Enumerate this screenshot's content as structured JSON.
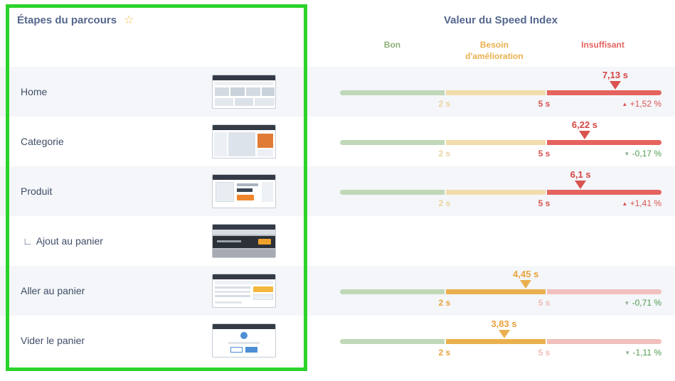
{
  "annotation": {
    "color": "#2bd32b"
  },
  "table": {
    "left_header": "Étapes du parcours",
    "star_icon": "☆",
    "right_header": "Valeur du Speed Index",
    "zones": [
      {
        "label": "Bon",
        "color": "#8cb077"
      },
      {
        "label": "Besoin d'amélioration",
        "color": "#eab04f"
      },
      {
        "label": "Insuffisant",
        "color": "#e4645f"
      }
    ],
    "ticks": [
      "2 s",
      "5 s"
    ]
  },
  "rows": [
    {
      "label": "Home",
      "prefix": "",
      "value": "7,13 s",
      "zone": "red",
      "pointer_pct": 85.6,
      "change": "+1,52 %",
      "trend": "up",
      "trend_icon": "▲"
    },
    {
      "label": "Categorie",
      "prefix": "",
      "value": "6,22 s",
      "zone": "red",
      "pointer_pct": 76.1,
      "change": "-0,17 %",
      "trend": "down",
      "trend_icon": "▼"
    },
    {
      "label": "Produit",
      "prefix": "",
      "value": "6,1 s",
      "zone": "red",
      "pointer_pct": 74.8,
      "change": "+1,41 %",
      "trend": "up",
      "trend_icon": "▲"
    },
    {
      "label": "Ajout au panier",
      "prefix": "∟",
      "value": null,
      "zone": null,
      "pointer_pct": null,
      "change": null,
      "trend": null,
      "trend_icon": null
    },
    {
      "label": "Aller au panier",
      "prefix": "",
      "value": "4,45 s",
      "zone": "yellow",
      "pointer_pct": 57.8,
      "change": "-0,71 %",
      "trend": "down",
      "trend_icon": "▼"
    },
    {
      "label": "Vider le panier",
      "prefix": "",
      "value": "3,83 s",
      "zone": "yellow",
      "pointer_pct": 51.0,
      "change": "-1,11 %",
      "trend": "down",
      "trend_icon": "▼"
    }
  ]
}
